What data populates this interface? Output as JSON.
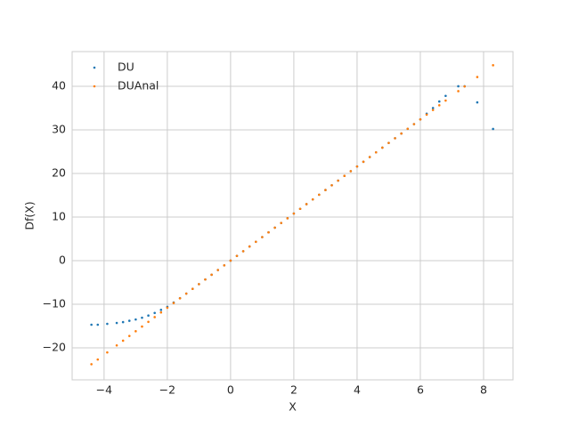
{
  "chart_data": {
    "type": "scatter",
    "xlabel": "X",
    "ylabel": "Df(X)",
    "xlim": [
      -5.01,
      8.93
    ],
    "ylim": [
      -27.35,
      47.95
    ],
    "xticks": [
      {
        "value": -4,
        "label": "−4"
      },
      {
        "value": -2,
        "label": "−2"
      },
      0,
      2,
      4,
      6,
      8
    ],
    "yticks": [
      {
        "value": -20,
        "label": "−20"
      },
      {
        "value": -10,
        "label": "−10"
      },
      0,
      10,
      20,
      30,
      40
    ],
    "grid": true,
    "legend": "upper left",
    "x": [
      -4.4,
      -4.2,
      -3.9,
      -3.6,
      -3.4,
      -3.2,
      -3.0,
      -2.8,
      -2.6,
      -2.4,
      -2.2,
      -2.0,
      -1.8,
      -1.6,
      -1.4,
      -1.2,
      -1.0,
      -0.8,
      -0.6,
      -0.4,
      -0.2,
      0,
      0.2,
      0.4,
      0.6,
      0.8,
      1.0,
      1.2,
      1.4,
      1.6,
      1.8,
      2.0,
      2.2,
      2.4,
      2.6,
      2.8,
      3.0,
      3.2,
      3.4,
      3.6,
      3.8,
      4.0,
      4.2,
      4.4,
      4.6,
      4.8,
      5.0,
      5.2,
      5.4,
      5.6,
      5.8,
      6.0,
      6.2,
      6.4,
      6.6,
      6.8,
      7.2,
      7.4,
      7.8,
      8.3
    ],
    "series": [
      {
        "name": "DU",
        "color": "#1f77b4",
        "values": [
          -14.7,
          -14.7,
          -14.5,
          -14.3,
          -14.1,
          -13.8,
          -13.5,
          -13.1,
          -12.6,
          -12.0,
          -11.3,
          -10.6,
          -9.6,
          -8.6,
          -7.56,
          -6.48,
          -5.4,
          -4.32,
          -3.24,
          -2.16,
          -1.08,
          0,
          1.08,
          2.16,
          3.24,
          4.32,
          5.4,
          6.48,
          7.56,
          8.64,
          9.72,
          10.8,
          11.88,
          12.96,
          14.04,
          15.12,
          16.2,
          17.28,
          18.36,
          19.44,
          20.52,
          21.6,
          22.68,
          23.76,
          24.84,
          25.92,
          27,
          28.08,
          29.16,
          30.24,
          31.32,
          32.4,
          33.7,
          35.0,
          36.5,
          37.8,
          40.0,
          40.0,
          36.3,
          30.2
        ]
      },
      {
        "name": "DUAnal",
        "color": "#ff7f0e",
        "values": [
          -23.76,
          -22.68,
          -21.06,
          -19.44,
          -18.36,
          -17.28,
          -16.2,
          -15.12,
          -14.04,
          -12.96,
          -11.88,
          -10.8,
          -9.72,
          -8.64,
          -7.56,
          -6.48,
          -5.4,
          -4.32,
          -3.24,
          -2.16,
          -1.08,
          0,
          1.08,
          2.16,
          3.24,
          4.32,
          5.4,
          6.48,
          7.56,
          8.64,
          9.72,
          10.8,
          11.88,
          12.96,
          14.04,
          15.12,
          16.2,
          17.28,
          18.36,
          19.44,
          20.52,
          21.6,
          22.68,
          23.76,
          24.84,
          25.92,
          27,
          28.08,
          29.16,
          30.24,
          31.32,
          32.4,
          33.48,
          34.56,
          35.64,
          36.72,
          38.88,
          39.96,
          42.12,
          44.82
        ]
      }
    ]
  }
}
